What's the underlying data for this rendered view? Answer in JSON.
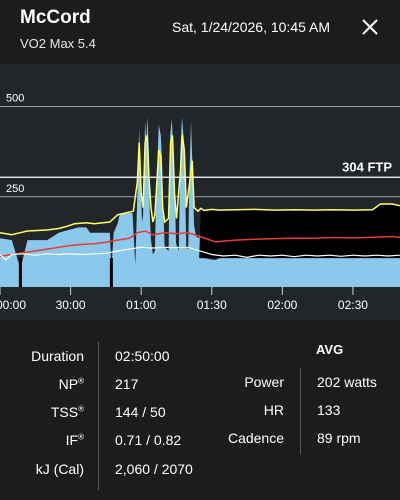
{
  "header": {
    "title": "McCord",
    "subtitle": "VO2 Max 5.4",
    "datetime": "Sat, 1/24/2026, 10:45 AM"
  },
  "chart_data": {
    "type": "area",
    "y_gridlines": [
      {
        "value": 500,
        "label": "500"
      },
      {
        "value": 250,
        "label": "250"
      }
    ],
    "ftp": {
      "value": 304,
      "label": "304 FTP"
    },
    "ylim": [
      0,
      600
    ],
    "x_ticks": [
      {
        "t": 0,
        "label": "00:00"
      },
      {
        "t": 1800,
        "label": "30:00"
      },
      {
        "t": 3600,
        "label": "01:00"
      },
      {
        "t": 5400,
        "label": "01:30"
      },
      {
        "t": 7200,
        "label": "02:00"
      },
      {
        "t": 9000,
        "label": "02:30"
      }
    ],
    "xlim": [
      0,
      10200
    ],
    "colors": {
      "power_fill": "#8ac8ec",
      "above_ftp_fill": "#000000",
      "power_line": "#ffff66",
      "hr_line": "#e83c34",
      "cadence_line": "#ffffff",
      "ftp_line": "#ffffff",
      "grid": "#9aa0a4"
    },
    "series": [
      {
        "key": "power",
        "points": [
          [
            0,
            135
          ],
          [
            300,
            130
          ],
          [
            520,
            50
          ],
          [
            700,
            130
          ],
          [
            1200,
            130
          ],
          [
            1350,
            140
          ],
          [
            1500,
            150
          ],
          [
            1650,
            155
          ],
          [
            2000,
            165
          ],
          [
            2200,
            165
          ],
          [
            2300,
            150
          ],
          [
            2800,
            150
          ],
          [
            2840,
            50
          ],
          [
            2900,
            150
          ],
          [
            3000,
            175
          ],
          [
            3050,
            200
          ],
          [
            3300,
            205
          ],
          [
            3380,
            205
          ],
          [
            3450,
            60
          ],
          [
            3500,
            250
          ],
          [
            3550,
            440
          ],
          [
            3600,
            250
          ],
          [
            3620,
            180
          ],
          [
            3650,
            200
          ],
          [
            3660,
            260
          ],
          [
            3700,
            460
          ],
          [
            3730,
            400
          ],
          [
            3760,
            470
          ],
          [
            3800,
            360
          ],
          [
            3820,
            200
          ],
          [
            3850,
            130
          ],
          [
            3900,
            90
          ],
          [
            3950,
            100
          ],
          [
            3980,
            250
          ],
          [
            4050,
            450
          ],
          [
            4100,
            420
          ],
          [
            4130,
            350
          ],
          [
            4160,
            230
          ],
          [
            4200,
            110
          ],
          [
            4300,
            100
          ],
          [
            4340,
            420
          ],
          [
            4380,
            465
          ],
          [
            4420,
            380
          ],
          [
            4460,
            250
          ],
          [
            4490,
            120
          ],
          [
            4560,
            100
          ],
          [
            4600,
            380
          ],
          [
            4640,
            470
          ],
          [
            4680,
            420
          ],
          [
            4720,
            280
          ],
          [
            4750,
            110
          ],
          [
            4800,
            105
          ],
          [
            4830,
            300
          ],
          [
            4870,
            460
          ],
          [
            4910,
            330
          ],
          [
            4950,
            170
          ],
          [
            5000,
            140
          ],
          [
            5080,
            135
          ],
          [
            5120,
            160
          ],
          [
            5200,
            80
          ],
          [
            5300,
            78
          ],
          [
            5400,
            76
          ],
          [
            5500,
            75
          ],
          [
            5600,
            80
          ],
          [
            6000,
            82
          ],
          [
            7000,
            80
          ],
          [
            8000,
            82
          ],
          [
            9000,
            80
          ],
          [
            9900,
            82
          ],
          [
            10200,
            80
          ]
        ]
      },
      {
        "key": "power_smooth",
        "points": [
          [
            0,
            150
          ],
          [
            300,
            145
          ],
          [
            500,
            150
          ],
          [
            700,
            155
          ],
          [
            1200,
            158
          ],
          [
            1500,
            162
          ],
          [
            1700,
            168
          ],
          [
            1900,
            175
          ],
          [
            2200,
            178
          ],
          [
            2400,
            175
          ],
          [
            2800,
            180
          ],
          [
            3000,
            200
          ],
          [
            3200,
            205
          ],
          [
            3400,
            210
          ],
          [
            3500,
            290
          ],
          [
            3550,
            400
          ],
          [
            3600,
            260
          ],
          [
            3650,
            220
          ],
          [
            3700,
            400
          ],
          [
            3750,
            420
          ],
          [
            3800,
            300
          ],
          [
            3850,
            220
          ],
          [
            3900,
            180
          ],
          [
            3950,
            200
          ],
          [
            4050,
            380
          ],
          [
            4100,
            360
          ],
          [
            4150,
            220
          ],
          [
            4200,
            180
          ],
          [
            4300,
            190
          ],
          [
            4350,
            400
          ],
          [
            4400,
            420
          ],
          [
            4450,
            260
          ],
          [
            4500,
            190
          ],
          [
            4600,
            320
          ],
          [
            4650,
            420
          ],
          [
            4700,
            380
          ],
          [
            4750,
            220
          ],
          [
            4850,
            300
          ],
          [
            4900,
            350
          ],
          [
            4950,
            220
          ],
          [
            5050,
            210
          ],
          [
            5120,
            218
          ],
          [
            5200,
            212
          ],
          [
            5400,
            215
          ],
          [
            5600,
            213
          ],
          [
            6000,
            214
          ],
          [
            6500,
            215
          ],
          [
            7000,
            213
          ],
          [
            7500,
            214
          ],
          [
            8000,
            213
          ],
          [
            8500,
            214
          ],
          [
            9000,
            213
          ],
          [
            9500,
            214
          ],
          [
            9700,
            230
          ],
          [
            10000,
            230
          ],
          [
            10200,
            225
          ]
        ]
      },
      {
        "key": "hr",
        "points": [
          [
            0,
            85
          ],
          [
            300,
            90
          ],
          [
            600,
            95
          ],
          [
            900,
            100
          ],
          [
            1200,
            105
          ],
          [
            1500,
            110
          ],
          [
            1800,
            115
          ],
          [
            2100,
            118
          ],
          [
            2400,
            120
          ],
          [
            2700,
            124
          ],
          [
            3000,
            130
          ],
          [
            3300,
            135
          ],
          [
            3500,
            150
          ],
          [
            3700,
            155
          ],
          [
            3900,
            145
          ],
          [
            4200,
            150
          ],
          [
            4500,
            148
          ],
          [
            4800,
            150
          ],
          [
            5100,
            140
          ],
          [
            5500,
            125
          ],
          [
            6000,
            130
          ],
          [
            6500,
            132
          ],
          [
            7000,
            134
          ],
          [
            7500,
            135
          ],
          [
            8000,
            135
          ],
          [
            8500,
            137
          ],
          [
            9000,
            136
          ],
          [
            9500,
            138
          ],
          [
            10000,
            140
          ],
          [
            10200,
            138
          ]
        ]
      },
      {
        "key": "cadence",
        "points": [
          [
            0,
            90
          ],
          [
            150,
            75
          ],
          [
            300,
            90
          ],
          [
            600,
            92
          ],
          [
            900,
            88
          ],
          [
            1200,
            92
          ],
          [
            1500,
            90
          ],
          [
            1800,
            92
          ],
          [
            2100,
            90
          ],
          [
            2400,
            92
          ],
          [
            2700,
            93
          ],
          [
            3000,
            100
          ],
          [
            3300,
            105
          ],
          [
            3600,
            110
          ],
          [
            3900,
            108
          ],
          [
            4200,
            110
          ],
          [
            4500,
            109
          ],
          [
            4800,
            110
          ],
          [
            5100,
            100
          ],
          [
            5400,
            90
          ],
          [
            5700,
            86
          ],
          [
            6000,
            88
          ],
          [
            6300,
            82
          ],
          [
            6600,
            88
          ],
          [
            6900,
            86
          ],
          [
            7200,
            88
          ],
          [
            7500,
            84
          ],
          [
            7800,
            88
          ],
          [
            8100,
            86
          ],
          [
            8400,
            88
          ],
          [
            8700,
            85
          ],
          [
            9000,
            88
          ],
          [
            9300,
            86
          ],
          [
            9600,
            88
          ],
          [
            9900,
            86
          ],
          [
            10200,
            88
          ]
        ]
      }
    ]
  },
  "stats": {
    "avg_title": "AVG",
    "left": [
      {
        "label": "Duration",
        "value": "02:50:00",
        "reg": false
      },
      {
        "label": "NP",
        "value": "217",
        "reg": true
      },
      {
        "label": "TSS",
        "value": "144 / 50",
        "reg": true
      },
      {
        "label": "IF",
        "value": "0.71 / 0.82",
        "reg": true
      },
      {
        "label": "kJ (Cal)",
        "value": "2,060 / 2070",
        "reg": false
      }
    ],
    "right": [
      {
        "label": "Power",
        "value": "202 watts"
      },
      {
        "label": "HR",
        "value": "133"
      },
      {
        "label": "Cadence",
        "value": "89 rpm"
      }
    ],
    "reg_mark": "®"
  }
}
